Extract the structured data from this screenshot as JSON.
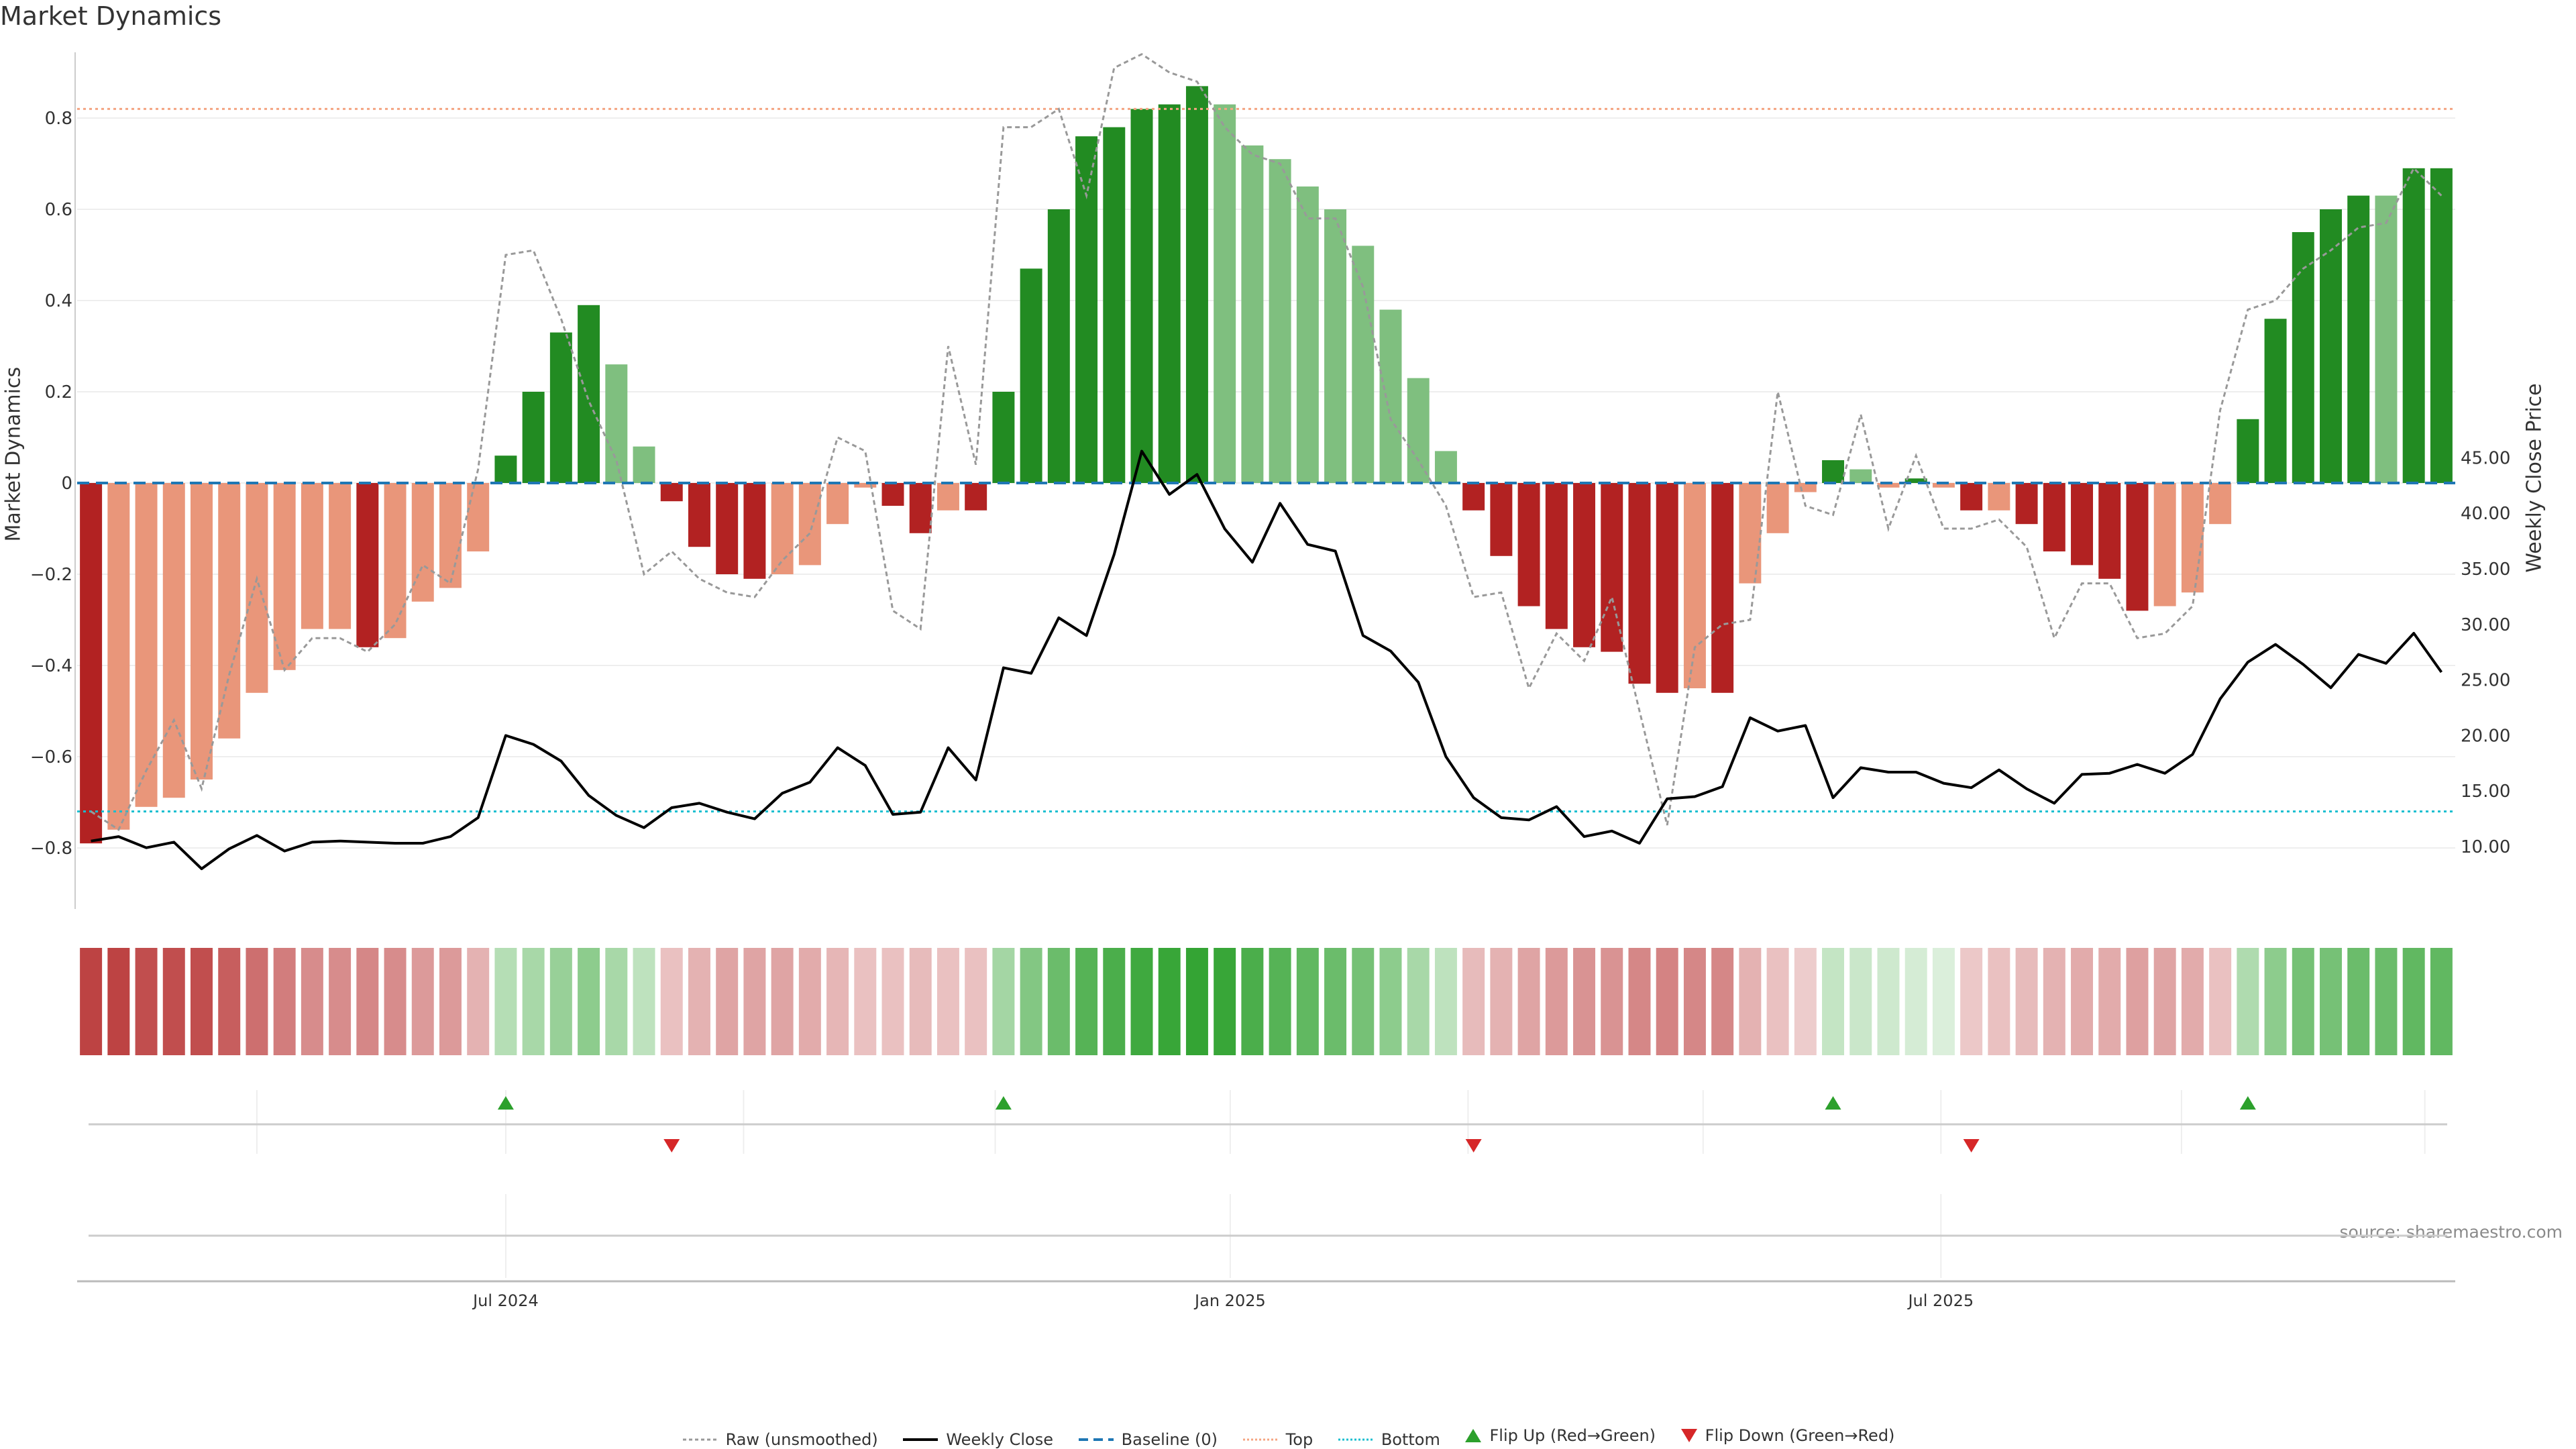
{
  "title": "Market Dynamics",
  "source": "source: sharemaestro.com",
  "chart_data": {
    "type": "bar",
    "ylabel_left": "Market Dynamics",
    "ylabel_right": "Weekly Close Price",
    "ylim_left": [
      -0.95,
      0.95
    ],
    "yticks_left": [
      -0.8,
      -0.6,
      -0.4,
      -0.2,
      0,
      0.2,
      0.4,
      0.6,
      0.8
    ],
    "ytick_labels_left": [
      "−0.8",
      "−0.6",
      "−0.4",
      "−0.2",
      "0",
      "0.2",
      "0.4",
      "0.6",
      "0.8"
    ],
    "yticks_right": [
      10,
      15,
      20,
      25,
      30,
      35,
      40,
      45
    ],
    "ytick_labels_right": [
      "10.00",
      "15.00",
      "20.00",
      "25.00",
      "30.00",
      "35.00",
      "40.00",
      "45.00"
    ],
    "x_tick_labels": [
      "Jul 2024",
      "Jan 2025",
      "Jul 2025"
    ],
    "x_tick_index": [
      15.5,
      41.7,
      67.4
    ],
    "top_threshold": 0.82,
    "bottom_threshold": -0.72,
    "baseline": 0,
    "bars": [
      -0.79,
      -0.76,
      -0.71,
      -0.69,
      -0.65,
      -0.56,
      -0.46,
      -0.41,
      -0.32,
      -0.32,
      -0.36,
      -0.34,
      -0.26,
      -0.23,
      -0.15,
      0.06,
      0.2,
      0.33,
      0.39,
      0.26,
      0.08,
      -0.04,
      -0.14,
      -0.2,
      -0.21,
      -0.2,
      -0.18,
      -0.09,
      -0.01,
      -0.05,
      -0.11,
      -0.06,
      -0.06,
      0.2,
      0.47,
      0.6,
      0.76,
      0.78,
      0.82,
      0.83,
      0.87,
      0.83,
      0.74,
      0.71,
      0.65,
      0.6,
      0.52,
      0.38,
      0.23,
      0.07,
      -0.06,
      -0.16,
      -0.27,
      -0.32,
      -0.36,
      -0.37,
      -0.44,
      -0.46,
      -0.45,
      -0.46,
      -0.22,
      -0.11,
      -0.02,
      0.05,
      0.03,
      -0.01,
      0.01,
      -0.01,
      -0.06,
      -0.06,
      -0.09,
      -0.15,
      -0.18,
      -0.21,
      -0.28,
      -0.27,
      -0.24,
      -0.09,
      0.14,
      0.36,
      0.55,
      0.6,
      0.63,
      0.63,
      0.69,
      0.69
    ],
    "bar_shade": [
      "dark",
      "light",
      "light",
      "light",
      "light",
      "light",
      "light",
      "light",
      "light",
      "light",
      "dark",
      "light",
      "light",
      "light",
      "light",
      "dark",
      "dark",
      "dark",
      "dark",
      "light",
      "light",
      "dark",
      "dark",
      "dark",
      "dark",
      "light",
      "light",
      "light",
      "light",
      "dark",
      "dark",
      "light",
      "dark",
      "dark",
      "dark",
      "dark",
      "dark",
      "dark",
      "dark",
      "dark",
      "dark",
      "light",
      "light",
      "light",
      "light",
      "light",
      "light",
      "light",
      "light",
      "light",
      "dark",
      "dark",
      "dark",
      "dark",
      "dark",
      "dark",
      "dark",
      "dark",
      "light",
      "dark",
      "light",
      "light",
      "light",
      "dark",
      "light",
      "light",
      "dark",
      "light",
      "dark",
      "light",
      "dark",
      "dark",
      "dark",
      "dark",
      "dark",
      "light",
      "light",
      "light",
      "dark",
      "dark",
      "dark",
      "dark",
      "dark",
      "light",
      "dark",
      "dark"
    ],
    "raw": [
      -0.72,
      -0.76,
      -0.63,
      -0.52,
      -0.67,
      -0.42,
      -0.21,
      -0.41,
      -0.34,
      -0.34,
      -0.37,
      -0.31,
      -0.18,
      -0.22,
      0.03,
      0.5,
      0.51,
      0.36,
      0.18,
      0.05,
      -0.2,
      -0.15,
      -0.21,
      -0.24,
      -0.25,
      -0.17,
      -0.11,
      0.1,
      0.07,
      -0.28,
      -0.32,
      0.3,
      0.04,
      0.78,
      0.78,
      0.82,
      0.63,
      0.91,
      0.94,
      0.9,
      0.88,
      0.78,
      0.72,
      0.7,
      0.58,
      0.58,
      0.43,
      0.14,
      0.05,
      -0.05,
      -0.25,
      -0.24,
      -0.45,
      -0.33,
      -0.39,
      -0.25,
      -0.5,
      -0.75,
      -0.36,
      -0.31,
      -0.3,
      0.2,
      -0.05,
      -0.07,
      0.15,
      -0.1,
      0.06,
      -0.1,
      -0.1,
      -0.08,
      -0.14,
      -0.34,
      -0.22,
      -0.22,
      -0.34,
      -0.33,
      -0.27,
      0.16,
      0.38,
      0.4,
      0.47,
      0.51,
      0.56,
      0.57,
      0.69,
      0.63
    ],
    "close": [
      10.5,
      10.9,
      9.9,
      10.4,
      8.0,
      9.8,
      11.0,
      9.6,
      10.4,
      10.5,
      10.4,
      10.3,
      10.3,
      10.9,
      12.6,
      20.0,
      19.2,
      17.7,
      14.6,
      12.8,
      11.7,
      13.5,
      13.9,
      13.1,
      12.5,
      14.8,
      15.8,
      18.9,
      17.3,
      12.9,
      13.1,
      18.9,
      16.0,
      26.1,
      25.6,
      30.6,
      29.0,
      36.3,
      45.6,
      41.7,
      43.5,
      38.6,
      35.6,
      40.9,
      37.2,
      36.6,
      29.0,
      27.6,
      24.8,
      18.1,
      14.4,
      12.6,
      12.4,
      13.6,
      10.9,
      11.4,
      10.3,
      14.3,
      14.5,
      15.4,
      21.6,
      20.4,
      20.9,
      14.4,
      17.1,
      16.7,
      16.7,
      15.7,
      15.3,
      16.9,
      15.2,
      13.9,
      16.5,
      16.6,
      17.4,
      16.6,
      18.3,
      23.3,
      26.6,
      28.2,
      26.4,
      24.3,
      27.3,
      26.5,
      29.2,
      25.7
    ],
    "colorstrip": [
      -0.7,
      -0.7,
      -0.65,
      -0.65,
      -0.65,
      -0.58,
      -0.5,
      -0.45,
      -0.38,
      -0.38,
      -0.4,
      -0.38,
      -0.32,
      -0.32,
      -0.22,
      0.22,
      0.28,
      0.35,
      0.4,
      0.28,
      0.18,
      -0.15,
      -0.22,
      -0.28,
      -0.28,
      -0.28,
      -0.25,
      -0.2,
      -0.15,
      -0.15,
      -0.18,
      -0.15,
      -0.15,
      0.3,
      0.45,
      0.55,
      0.65,
      0.7,
      0.75,
      0.78,
      0.8,
      0.78,
      0.7,
      0.65,
      0.6,
      0.55,
      0.5,
      0.4,
      0.28,
      0.18,
      -0.18,
      -0.22,
      -0.28,
      -0.32,
      -0.35,
      -0.35,
      -0.4,
      -0.42,
      -0.4,
      -0.4,
      -0.22,
      -0.15,
      -0.1,
      0.15,
      0.12,
      0.1,
      0.08,
      0.05,
      -0.12,
      -0.15,
      -0.18,
      -0.22,
      -0.25,
      -0.25,
      -0.3,
      -0.28,
      -0.25,
      -0.15,
      0.25,
      0.4,
      0.5,
      0.5,
      0.55,
      0.55,
      0.6,
      0.6
    ],
    "flip_up": [
      15,
      33,
      63,
      78
    ],
    "flip_down": [
      21,
      50,
      68
    ],
    "flip_grid": [
      6.5,
      15.5,
      24.1,
      33.2,
      41.7,
      50.3,
      58.8,
      67.4,
      76.1,
      84.9
    ],
    "colors": {
      "green_dark": "#228b22",
      "green_light": "#7fbf7f",
      "red_dark": "#b22222",
      "red_light": "#e9967a",
      "raw": "#999999",
      "close": "#000000",
      "baseline": "#1f77b4",
      "top": "#f4a582",
      "bottom": "#17becf",
      "flip_up": "#2ca02c",
      "flip_down": "#d62728",
      "grid": "#eeeeee"
    }
  },
  "legend": [
    {
      "key": "raw",
      "label": "Raw (unsmoothed)"
    },
    {
      "key": "close",
      "label": "Weekly Close"
    },
    {
      "key": "baseline",
      "label": "Baseline (0)"
    },
    {
      "key": "top",
      "label": "Top"
    },
    {
      "key": "bottom",
      "label": "Bottom"
    },
    {
      "key": "flipup",
      "label": "Flip Up (Red→Green)"
    },
    {
      "key": "flipdown",
      "label": "Flip Down (Green→Red)"
    }
  ]
}
